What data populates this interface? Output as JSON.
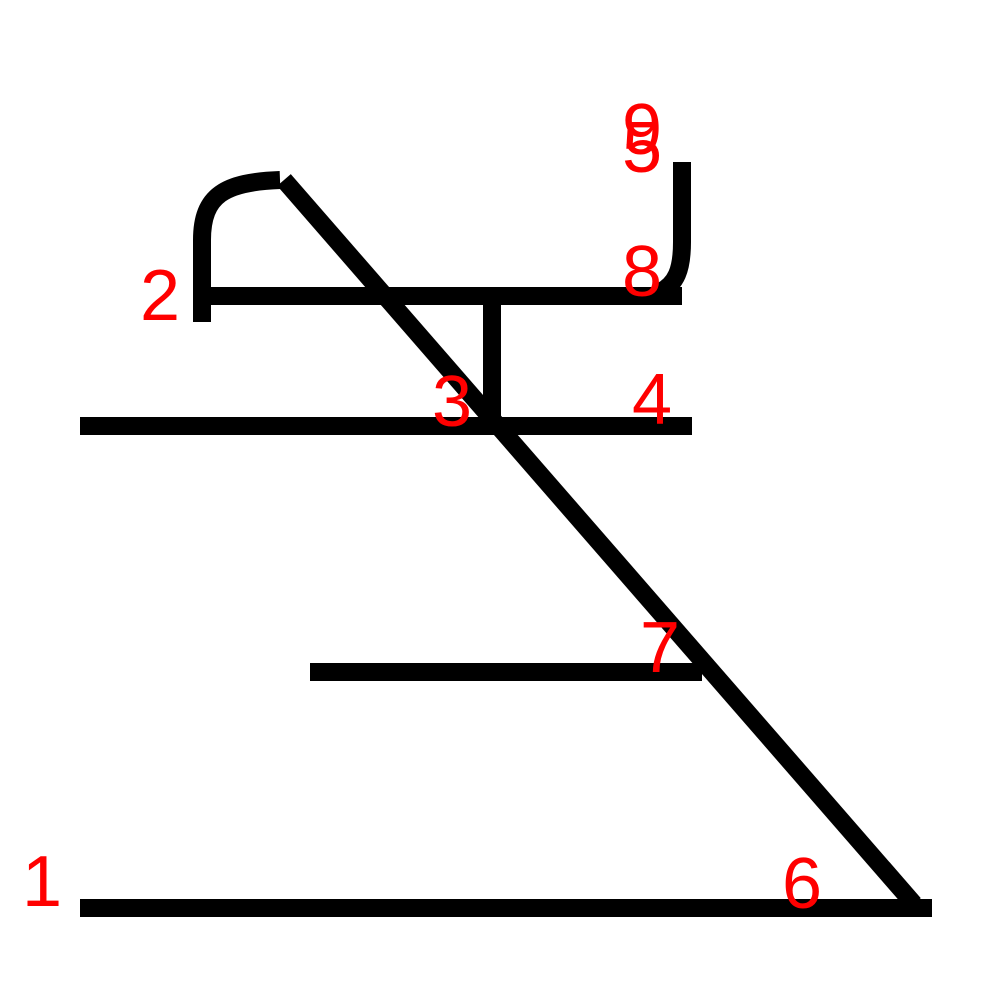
{
  "colors": {
    "stroke": "#000000",
    "label": "#ff0000",
    "background": "#ffffff"
  },
  "labels": {
    "l1": "1",
    "l2": "2",
    "l3": "3",
    "l4": "4",
    "l5": "5",
    "l6": "6",
    "l7": "7",
    "l8": "8",
    "l9": "9"
  }
}
